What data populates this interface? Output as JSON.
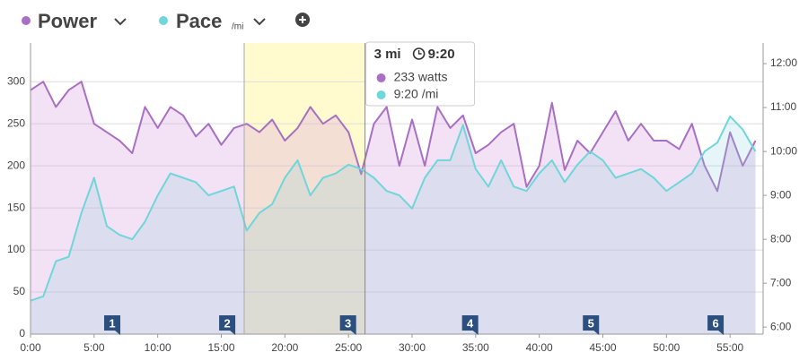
{
  "chart_data": {
    "type": "line",
    "header": {
      "power": "Power",
      "pace": "Pace",
      "pace_unit": "/mi"
    },
    "x": [
      0,
      1,
      2,
      3,
      4,
      5,
      6,
      7,
      8,
      9,
      10,
      11,
      12,
      13,
      14,
      15,
      16,
      17,
      18,
      19,
      20,
      21,
      22,
      23,
      24,
      25,
      26,
      27,
      28,
      29,
      30,
      31,
      32,
      33,
      34,
      35,
      36,
      37,
      38,
      39,
      40,
      41,
      42,
      43,
      44,
      45,
      46,
      47,
      48,
      49,
      50,
      51,
      52,
      53,
      54,
      55,
      56,
      57
    ],
    "series": [
      {
        "name": "Power",
        "color": "#a86fc2",
        "fill": "rgba(214,160,222,0.30)",
        "values": [
          290,
          300,
          270,
          290,
          300,
          250,
          240,
          230,
          215,
          270,
          245,
          270,
          260,
          235,
          250,
          225,
          245,
          250,
          240,
          255,
          230,
          245,
          270,
          250,
          260,
          240,
          190,
          250,
          270,
          200,
          255,
          200,
          270,
          245,
          260,
          215,
          225,
          240,
          250,
          175,
          200,
          275,
          195,
          230,
          215,
          240,
          265,
          230,
          250,
          230,
          230,
          220,
          250,
          200,
          170,
          240,
          200,
          230
        ]
      },
      {
        "name": "Pace",
        "color": "#6fd6d9",
        "fill": "rgba(140,210,225,0.22)",
        "axis": "y2",
        "values": [
          6.6,
          6.7,
          7.5,
          7.6,
          8.6,
          9.4,
          8.3,
          8.1,
          8.0,
          8.4,
          9.0,
          9.5,
          9.4,
          9.3,
          9.0,
          9.1,
          9.2,
          8.2,
          8.6,
          8.8,
          9.4,
          9.8,
          9.0,
          9.4,
          9.5,
          9.7,
          9.6,
          9.4,
          9.1,
          9.0,
          8.7,
          9.4,
          9.8,
          9.8,
          10.6,
          9.6,
          9.2,
          9.8,
          9.2,
          9.1,
          9.5,
          9.8,
          9.3,
          9.7,
          10.0,
          9.8,
          9.4,
          9.5,
          9.6,
          9.4,
          9.1,
          9.3,
          9.5,
          10.0,
          10.2,
          10.8,
          10.5,
          10.0
        ]
      }
    ],
    "xlim": [
      0,
      57.6
    ],
    "xticks": [
      {
        "value": 0,
        "label": "0:00"
      },
      {
        "value": 5,
        "label": "5:00"
      },
      {
        "value": 10,
        "label": "10:00"
      },
      {
        "value": 15,
        "label": "15:00"
      },
      {
        "value": 20,
        "label": "20:00"
      },
      {
        "value": 25,
        "label": "25:00"
      },
      {
        "value": 30,
        "label": "30:00"
      },
      {
        "value": 35,
        "label": "35:00"
      },
      {
        "value": 40,
        "label": "40:00"
      },
      {
        "value": 45,
        "label": "45:00"
      },
      {
        "value": 50,
        "label": "50:00"
      },
      {
        "value": 55,
        "label": "55:00"
      }
    ],
    "ylim": [
      0,
      346
    ],
    "yticks": [
      0,
      50,
      100,
      150,
      200,
      250,
      300
    ],
    "y2lim": [
      5.84,
      12.47
    ],
    "y2ticks": [
      {
        "value": 6,
        "label": "6:00"
      },
      {
        "value": 7,
        "label": "7:00"
      },
      {
        "value": 8,
        "label": "8:00"
      },
      {
        "value": 9,
        "label": "9:00"
      },
      {
        "value": 10,
        "label": "10:00"
      },
      {
        "value": 11,
        "label": "11:00"
      },
      {
        "value": 12,
        "label": "12:00"
      }
    ],
    "grid": true,
    "highlight": [
      16.8,
      26.3
    ],
    "markers": [
      {
        "mile": 1,
        "x": 7.06
      },
      {
        "mile": 2,
        "x": 16.1
      },
      {
        "mile": 3,
        "x": 25.6
      },
      {
        "mile": 4,
        "x": 35.2
      },
      {
        "mile": 5,
        "x": 44.7
      },
      {
        "mile": 6,
        "x": 54.5
      }
    ],
    "tooltip": {
      "distance": "3 mi",
      "time": "9:20",
      "power": "233 watts",
      "pace": "9:20 /mi"
    }
  }
}
